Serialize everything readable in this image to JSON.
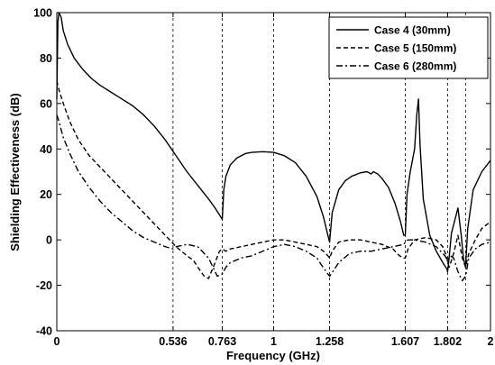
{
  "chart_data": {
    "type": "line",
    "title": "",
    "xlabel": "Frequency (GHz)",
    "ylabel": "Shielding Effectiveness (dB)",
    "xlim": [
      0,
      2
    ],
    "ylim": [
      -40,
      100
    ],
    "x_ticks": [
      0,
      0.536,
      0.763,
      1,
      1.258,
      1.607,
      1.802,
      2
    ],
    "x_tick_labels": [
      "0",
      "0.536",
      "0.763",
      "1",
      "1.258",
      "1.607",
      "1.802",
      "2"
    ],
    "y_ticks": [
      -40,
      -20,
      0,
      20,
      40,
      60,
      80,
      100
    ],
    "y_tick_labels": [
      "-40",
      "-20",
      "0",
      "20",
      "40",
      "60",
      "80",
      "100"
    ],
    "vertical_dashed_lines": [
      0.536,
      0.763,
      1,
      1.258,
      1.607,
      1.802,
      1.885
    ],
    "legend_position": "top-right",
    "series": [
      {
        "name": "Case 4 (30mm)",
        "line_style": "solid",
        "color": "#000000",
        "x": [
          0.0,
          0.005,
          0.01,
          0.02,
          0.03,
          0.05,
          0.08,
          0.12,
          0.16,
          0.2,
          0.25,
          0.3,
          0.35,
          0.4,
          0.45,
          0.5,
          0.55,
          0.6,
          0.65,
          0.7,
          0.73,
          0.75,
          0.76,
          0.763,
          0.77,
          0.78,
          0.8,
          0.83,
          0.87,
          0.9,
          0.95,
          1.0,
          1.05,
          1.1,
          1.15,
          1.2,
          1.23,
          1.25,
          1.258,
          1.27,
          1.3,
          1.33,
          1.36,
          1.4,
          1.43,
          1.45,
          1.46,
          1.48,
          1.5,
          1.53,
          1.56,
          1.585,
          1.6,
          1.607,
          1.615,
          1.63,
          1.65,
          1.66,
          1.668,
          1.675,
          1.69,
          1.72,
          1.75,
          1.78,
          1.8,
          1.802,
          1.805,
          1.82,
          1.85,
          1.865,
          1.875,
          1.885,
          1.895,
          1.92,
          1.96,
          2.0
        ],
        "y": [
          62,
          96,
          100,
          98,
          92,
          86,
          80,
          75,
          71,
          68,
          65,
          62,
          59,
          55,
          50,
          44,
          37,
          30,
          24,
          18,
          14,
          11,
          9.5,
          9,
          22,
          28,
          33,
          36,
          38,
          38.5,
          38.8,
          38.5,
          37,
          34,
          28,
          19,
          10,
          2,
          -1,
          12,
          22,
          26,
          28,
          29.5,
          30,
          29,
          30,
          29,
          27,
          23,
          16,
          8,
          2,
          2,
          20,
          30,
          40,
          55,
          62,
          42,
          18,
          2,
          -5,
          -10,
          -13,
          -14,
          -12,
          3,
          14,
          2,
          -8,
          -12,
          5,
          22,
          30,
          35
        ]
      },
      {
        "name": "Case 5 (150mm)",
        "line_style": "dashed",
        "color": "#000000",
        "x": [
          0.0,
          0.01,
          0.03,
          0.06,
          0.1,
          0.15,
          0.2,
          0.25,
          0.3,
          0.35,
          0.4,
          0.45,
          0.5,
          0.55,
          0.6,
          0.63,
          0.65,
          0.68,
          0.7,
          0.73,
          0.75,
          0.763,
          0.78,
          0.8,
          0.85,
          0.9,
          0.95,
          1.0,
          1.05,
          1.1,
          1.15,
          1.2,
          1.23,
          1.25,
          1.258,
          1.27,
          1.3,
          1.35,
          1.4,
          1.45,
          1.5,
          1.55,
          1.58,
          1.6,
          1.607,
          1.62,
          1.65,
          1.7,
          1.75,
          1.78,
          1.8,
          1.802,
          1.81,
          1.83,
          1.85,
          1.87,
          1.885,
          1.9,
          1.93,
          1.96,
          2.0
        ],
        "y": [
          70,
          66,
          60,
          52,
          44,
          37,
          32,
          27,
          22,
          17,
          12,
          7,
          2,
          -3,
          -7,
          -9,
          -12,
          -16,
          -17,
          -10,
          -5,
          -4,
          -5,
          -4,
          -3,
          -2,
          -1,
          0,
          0,
          -1,
          -2,
          -3,
          -5,
          -7,
          -8,
          -5,
          -1,
          0,
          0,
          -1,
          -2,
          -4,
          -7,
          -8,
          -8,
          -4,
          0,
          1,
          0,
          -3,
          -8,
          -10,
          -12,
          -6,
          2,
          -8,
          -12,
          -6,
          0,
          5,
          8
        ]
      },
      {
        "name": "Case 6 (280mm)",
        "line_style": "dashdot",
        "color": "#000000",
        "x": [
          0.0,
          0.01,
          0.03,
          0.06,
          0.1,
          0.15,
          0.2,
          0.25,
          0.3,
          0.35,
          0.4,
          0.45,
          0.5,
          0.536,
          0.55,
          0.6,
          0.65,
          0.7,
          0.72,
          0.74,
          0.763,
          0.78,
          0.8,
          0.85,
          0.9,
          0.95,
          1.0,
          1.05,
          1.1,
          1.15,
          1.2,
          1.22,
          1.25,
          1.258,
          1.28,
          1.3,
          1.35,
          1.4,
          1.45,
          1.5,
          1.55,
          1.6,
          1.607,
          1.62,
          1.65,
          1.7,
          1.75,
          1.79,
          1.802,
          1.815,
          1.83,
          1.85,
          1.87,
          1.885,
          1.9,
          1.93,
          1.96,
          2.0
        ],
        "y": [
          55,
          52,
          45,
          38,
          30,
          23,
          17,
          12,
          8,
          4,
          1,
          -1,
          -3,
          -4,
          -3,
          -2,
          -3,
          -8,
          -12,
          -16,
          -15,
          -12,
          -10,
          -8,
          -7,
          -5,
          -3,
          -2,
          -3,
          -5,
          -8,
          -11,
          -15,
          -16,
          -13,
          -10,
          -6,
          -5,
          -5,
          -4,
          -3,
          -2,
          -1,
          0,
          0,
          -1,
          -3,
          -7,
          -9,
          -7,
          -8,
          -14,
          -18,
          -16,
          -8,
          -4,
          -2,
          -1
        ]
      }
    ]
  }
}
